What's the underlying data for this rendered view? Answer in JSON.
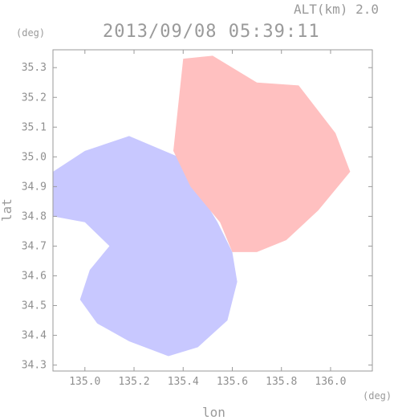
{
  "header": {
    "altitude": "ALT(km) 2.0",
    "timestamp": "2013/09/08 05:39:11"
  },
  "chart_data": {
    "type": "heatmap",
    "title": "2013/09/08 05:39:11",
    "subtitle": "ALT(km) 2.0",
    "xlabel": "lon",
    "ylabel": "lat",
    "x_unit": "(deg)",
    "y_unit": "(deg)",
    "xlim": [
      134.87,
      136.17
    ],
    "ylim": [
      34.28,
      35.36
    ],
    "x_ticks": [
      135.0,
      135.2,
      135.4,
      135.6,
      135.8,
      136.0
    ],
    "x_tick_labels": [
      "135.0",
      "135.2",
      "135.4",
      "135.6",
      "135.8",
      "136.0"
    ],
    "y_ticks": [
      34.3,
      34.4,
      34.5,
      34.6,
      34.7,
      34.8,
      34.9,
      35.0,
      35.1,
      35.2,
      35.3
    ],
    "y_tick_labels": [
      "34.3",
      "34.4",
      "34.5",
      "34.6",
      "34.7",
      "34.8",
      "34.9",
      "35.0",
      "35.1",
      "35.2",
      "35.3"
    ],
    "colors": {
      "approaching": "#c8c8ff",
      "receding": "#ffc0c0",
      "axis": "#9a9a9a"
    },
    "regions": [
      {
        "name": "approaching",
        "lonlat": [
          [
            134.87,
            34.95
          ],
          [
            135.0,
            35.02
          ],
          [
            135.18,
            35.07
          ],
          [
            135.38,
            35.0
          ],
          [
            135.54,
            34.78
          ],
          [
            135.6,
            34.68
          ],
          [
            135.62,
            34.58
          ],
          [
            135.58,
            34.45
          ],
          [
            135.46,
            34.36
          ],
          [
            135.34,
            34.33
          ],
          [
            135.18,
            34.38
          ],
          [
            135.05,
            34.44
          ],
          [
            134.98,
            34.52
          ],
          [
            135.02,
            34.62
          ],
          [
            135.1,
            34.7
          ],
          [
            135.0,
            34.78
          ],
          [
            134.87,
            34.8
          ]
        ]
      },
      {
        "name": "receding",
        "lonlat": [
          [
            135.4,
            35.33
          ],
          [
            135.52,
            35.34
          ],
          [
            135.7,
            35.25
          ],
          [
            135.87,
            35.24
          ],
          [
            136.02,
            35.08
          ],
          [
            136.08,
            34.95
          ],
          [
            135.95,
            34.82
          ],
          [
            135.82,
            34.72
          ],
          [
            135.7,
            34.68
          ],
          [
            135.6,
            34.68
          ],
          [
            135.55,
            34.78
          ],
          [
            135.43,
            34.9
          ],
          [
            135.36,
            35.02
          ]
        ]
      }
    ]
  }
}
